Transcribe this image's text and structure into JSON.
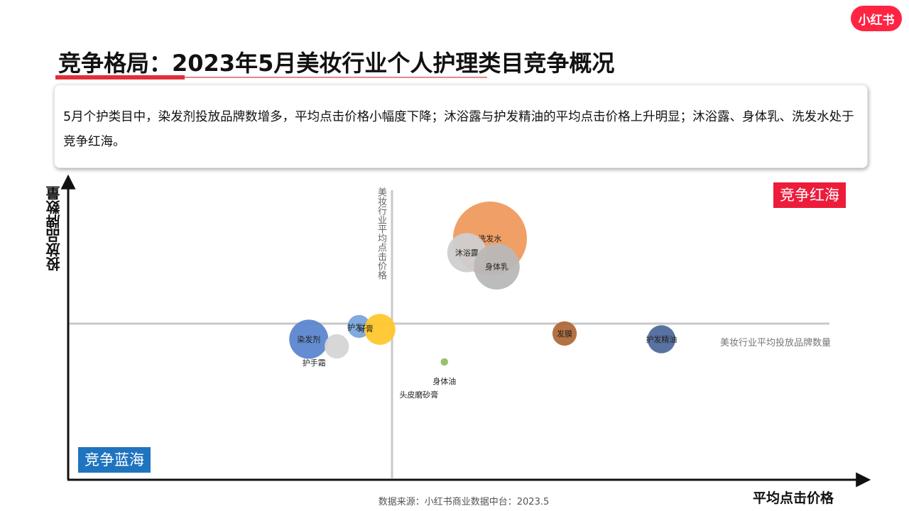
{
  "logo": "小红书",
  "title": "竞争格局：2023年5月美妆行业个人护理类目竞争概况",
  "summary": "5月个护类目中，染发剂投放品牌数增多，平均点击价格小幅度下降；沐浴露与护发精油的平均点击价格上升明显；沐浴露、身体乳、洗发水处于竞争红海。",
  "source": "数据来源：小红书商业数据中台：2023.5",
  "chart_data": {
    "type": "scatter",
    "xlabel": "平均点击价格",
    "ylabel": "投放品牌数量",
    "quadrants": {
      "top_right": "竞争红海",
      "bottom_left": "竞争蓝海"
    },
    "reference_lines": {
      "vertical": "美妆行业平均点击价格",
      "horizontal": "美妆行业平均投放品牌数量"
    },
    "points": [
      {
        "name": "洗发水",
        "x": 0.445,
        "y": 0.638,
        "size": 1.0,
        "color": "#ef9a5e"
      },
      {
        "name": "沐浴露",
        "x": 0.34,
        "y": 0.532,
        "size": 0.53,
        "color": "#cfcfcf"
      },
      {
        "name": "身体乳",
        "x": 0.476,
        "y": 0.427,
        "size": 0.62,
        "color": "#b8b8b8"
      },
      {
        "name": "护发素",
        "x": -0.15,
        "y": -0.021,
        "size": 0.31,
        "color": "#7aa7dc"
      },
      {
        "name": "牙膏",
        "x": -0.055,
        "y": -0.043,
        "size": 0.42,
        "color": "#ffc72c"
      },
      {
        "name": "染发剂",
        "x": -0.378,
        "y": -0.117,
        "size": 0.53,
        "color": "#5b86cf"
      },
      {
        "name": "护手霜",
        "x": -0.251,
        "y": -0.17,
        "size": 0.33,
        "color": "#d5d5d5"
      },
      {
        "name": "发膜",
        "x": 0.784,
        "y": -0.074,
        "size": 0.33,
        "color": "#b06a3a"
      },
      {
        "name": "护发精油",
        "x": 1.224,
        "y": -0.117,
        "size": 0.38,
        "color": "#4f6a9c"
      },
      {
        "name": "身体油",
        "x": 0.238,
        "y": -0.287,
        "size": 0.1,
        "color": "#8fbf64"
      },
      {
        "name": "头皮磨砂膏",
        "x": 0.122,
        "y": -0.532,
        "size": 0,
        "color": "#999999"
      }
    ]
  }
}
